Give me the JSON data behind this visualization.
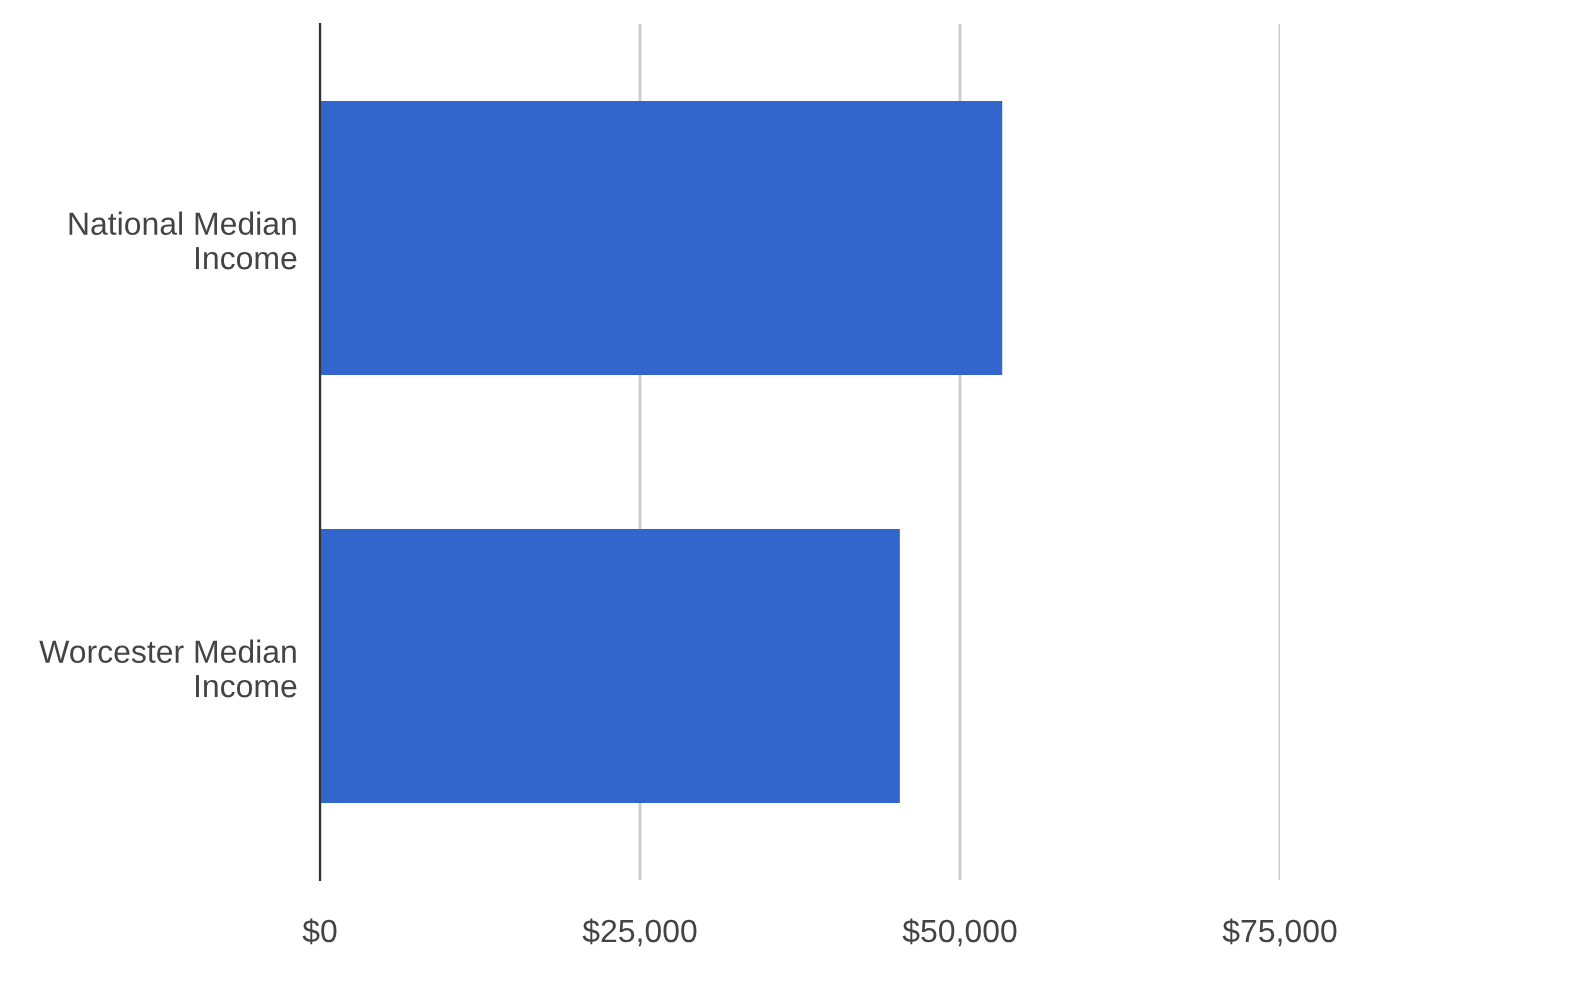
{
  "chart_data": {
    "type": "bar",
    "orientation": "horizontal",
    "categories": [
      "National Median\nIncome",
      "Worcester Median\nIncome"
    ],
    "values": [
      53300,
      45300
    ],
    "color": "#3366cc",
    "xlim": [
      0,
      75000
    ],
    "xticks": [
      {
        "value": 0,
        "label": "$0"
      },
      {
        "value": 25000,
        "label": "$25,000"
      },
      {
        "value": 50000,
        "label": "$50,000"
      },
      {
        "value": 75000,
        "label": "$75,000"
      }
    ],
    "grid": "x",
    "legend": false
  }
}
